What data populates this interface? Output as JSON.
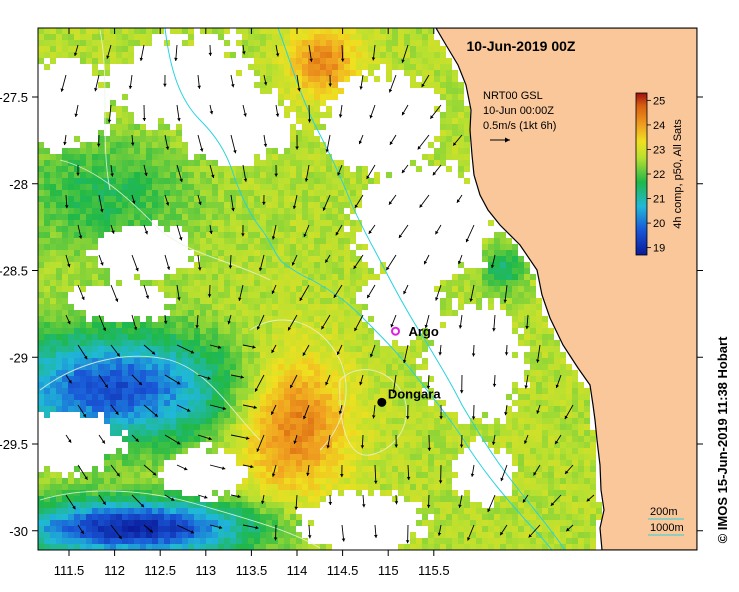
{
  "map": {
    "title": "10-Jun-2019 00Z",
    "info_lines": [
      "NRT00 GSL",
      "10-Jun 00:00Z",
      "0.5m/s (1kt 6h)"
    ],
    "colorbar_label": "4h comp, p50, All Sats",
    "colorbar_ticks": [
      "19",
      "20",
      "21",
      "22",
      "23",
      "24",
      "25"
    ],
    "colorbar_range": [
      18.7,
      25.3
    ],
    "x_ticks": [
      "111.5",
      "112",
      "112.5",
      "113",
      "113.5",
      "114",
      "114.5",
      "115",
      "115.5"
    ],
    "y_ticks": [
      "-27.5",
      "-28",
      "-28.5",
      "-29",
      "-29.5",
      "-30"
    ],
    "places": [
      {
        "name": "Argo",
        "marker": "argo-float",
        "lon": 115.08,
        "lat": -28.85,
        "color": "#e020e0"
      },
      {
        "name": "Dongara",
        "marker": "town-dot",
        "lon": 114.93,
        "lat": -29.26,
        "color": "#000000"
      }
    ],
    "depth_legend": [
      "200m",
      "1000m"
    ],
    "credit": "© IMOS 15-Jun-2019 11:38 Hobart",
    "colors": {
      "land": "#f9c79a",
      "coast": "#000000",
      "isobath_1000": "#27d3e0",
      "current_arrows": "#000000",
      "sst_warm": "#d87810",
      "sst_cool": "#0a1a9a"
    }
  }
}
